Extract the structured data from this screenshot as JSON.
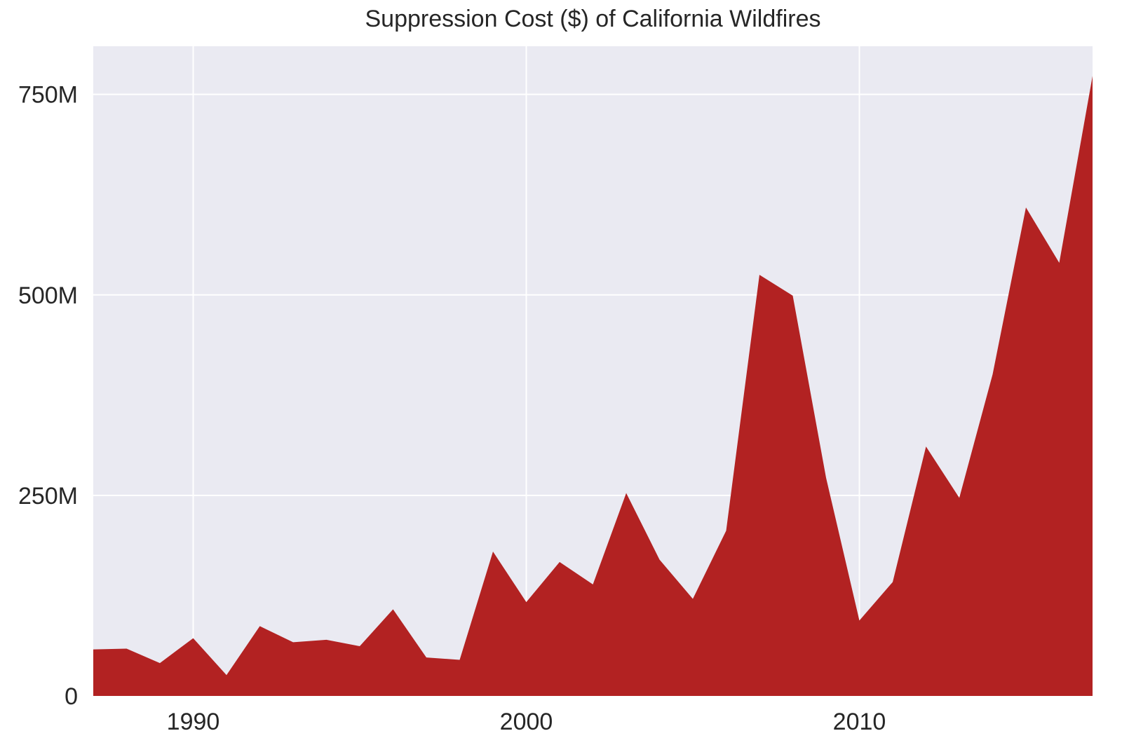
{
  "chart_data": {
    "type": "area",
    "title": "Suppression Cost ($) of California Wildfires",
    "xlabel": "",
    "ylabel": "",
    "x": [
      1987,
      1988,
      1989,
      1990,
      1991,
      1992,
      1993,
      1994,
      1995,
      1996,
      1997,
      1998,
      1999,
      2000,
      2001,
      2002,
      2003,
      2004,
      2005,
      2006,
      2007,
      2008,
      2009,
      2010,
      2011,
      2012,
      2013,
      2014,
      2015,
      2016,
      2017
    ],
    "series": [
      {
        "values": [
          58000000,
          59000000,
          41000000,
          72000000,
          26000000,
          87000000,
          67000000,
          70000000,
          62000000,
          108000000,
          48000000,
          45000000,
          180000000,
          117000000,
          167000000,
          139000000,
          253000000,
          170000000,
          121000000,
          206000000,
          525000000,
          499000000,
          272000000,
          94000000,
          142000000,
          311000000,
          247000000,
          401000000,
          609000000,
          540000000,
          773000000
        ],
        "color": "#b22222"
      }
    ],
    "xlim": [
      1987,
      2017
    ],
    "ylim": [
      0,
      810000000
    ],
    "x_ticks": [
      1990,
      2000,
      2010
    ],
    "x_tick_labels": [
      "1990",
      "2000",
      "2010"
    ],
    "y_ticks": [
      0,
      250000000,
      500000000,
      750000000
    ],
    "y_tick_labels": [
      "0",
      "250M",
      "500M",
      "750M"
    ],
    "grid": true,
    "legend": "none",
    "colors": {
      "background": "#eaeaf2",
      "grid": "#ffffff",
      "area": "#b22222"
    }
  }
}
